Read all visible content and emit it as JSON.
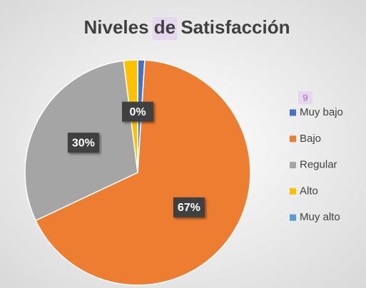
{
  "chart_data": {
    "type": "pie",
    "title": "Niveles de Satisfacción",
    "categories": [
      "Muy bajo",
      "Bajo",
      "Regular",
      "Alto",
      "Muy alto"
    ],
    "values": [
      1,
      67,
      30,
      2,
      0
    ],
    "value_labels": [
      null,
      "67%",
      "30%",
      null,
      "0%"
    ],
    "colors": [
      "#4472c4",
      "#ed7d31",
      "#a5a5a5",
      "#ffc000",
      "#5b9bd5"
    ],
    "legend": "right",
    "annotation": "9"
  }
}
